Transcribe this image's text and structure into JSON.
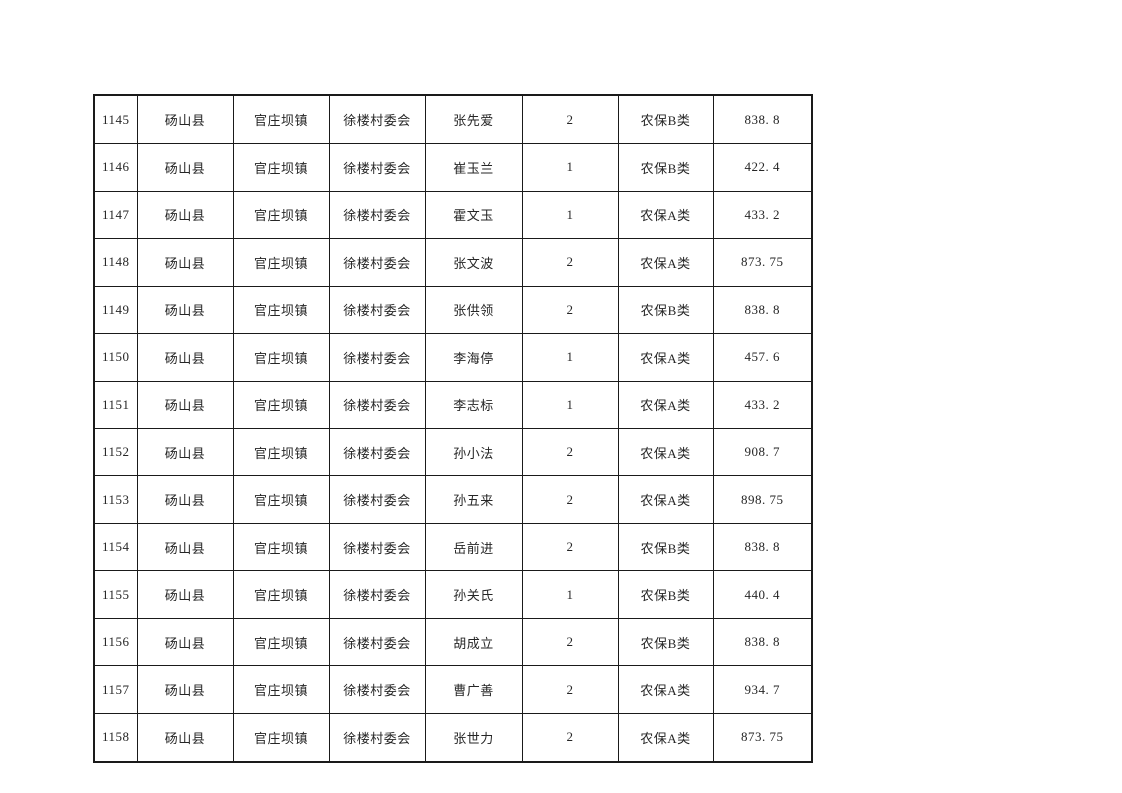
{
  "page": {
    "background_color": "#ffffff",
    "border_color": "#1a1a1a",
    "text_color": "#262626"
  },
  "table": {
    "columns": [
      "id",
      "county",
      "town",
      "village",
      "name",
      "count",
      "category",
      "amount"
    ],
    "rows": [
      [
        "1145",
        "砀山县",
        "官庄坝镇",
        "徐楼村委会",
        "张先爱",
        "2",
        "农保B类",
        "838. 8"
      ],
      [
        "1146",
        "砀山县",
        "官庄坝镇",
        "徐楼村委会",
        "崔玉兰",
        "1",
        "农保B类",
        "422. 4"
      ],
      [
        "1147",
        "砀山县",
        "官庄坝镇",
        "徐楼村委会",
        "霍文玉",
        "1",
        "农保A类",
        "433. 2"
      ],
      [
        "1148",
        "砀山县",
        "官庄坝镇",
        "徐楼村委会",
        "张文波",
        "2",
        "农保A类",
        "873. 75"
      ],
      [
        "1149",
        "砀山县",
        "官庄坝镇",
        "徐楼村委会",
        "张供领",
        "2",
        "农保B类",
        "838. 8"
      ],
      [
        "1150",
        "砀山县",
        "官庄坝镇",
        "徐楼村委会",
        "李海停",
        "1",
        "农保A类",
        "457. 6"
      ],
      [
        "1151",
        "砀山县",
        "官庄坝镇",
        "徐楼村委会",
        "李志标",
        "1",
        "农保A类",
        "433. 2"
      ],
      [
        "1152",
        "砀山县",
        "官庄坝镇",
        "徐楼村委会",
        "孙小法",
        "2",
        "农保A类",
        "908. 7"
      ],
      [
        "1153",
        "砀山县",
        "官庄坝镇",
        "徐楼村委会",
        "孙五来",
        "2",
        "农保A类",
        "898. 75"
      ],
      [
        "1154",
        "砀山县",
        "官庄坝镇",
        "徐楼村委会",
        "岳前进",
        "2",
        "农保B类",
        "838. 8"
      ],
      [
        "1155",
        "砀山县",
        "官庄坝镇",
        "徐楼村委会",
        "孙关氏",
        "1",
        "农保B类",
        "440. 4"
      ],
      [
        "1156",
        "砀山县",
        "官庄坝镇",
        "徐楼村委会",
        "胡成立",
        "2",
        "农保B类",
        "838. 8"
      ],
      [
        "1157",
        "砀山县",
        "官庄坝镇",
        "徐楼村委会",
        "曹广善",
        "2",
        "农保A类",
        "934. 7"
      ],
      [
        "1158",
        "砀山县",
        "官庄坝镇",
        "徐楼村委会",
        "张世力",
        "2",
        "农保A类",
        "873. 75"
      ]
    ]
  }
}
